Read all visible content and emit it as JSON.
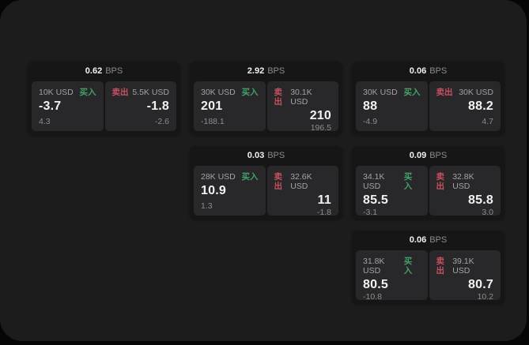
{
  "labels": {
    "bps_unit": "BPS",
    "buy": "买入",
    "sell": "卖出"
  },
  "colors": {
    "outer_bg": "#060607",
    "page_bg": "#1c1c1d",
    "card_bg": "#161617",
    "tile_bg": "#28282a",
    "value_text": "#f2f2f2",
    "muted_text": "#a3a3a3",
    "faint_text": "#8c8c8c",
    "buy_green": "#3fa368",
    "sell_red": "#c84f5f"
  },
  "cards": [
    {
      "bps": "0.62",
      "buy": {
        "notional": "10K USD",
        "price": "-3.7",
        "delta": "4.3"
      },
      "sell": {
        "notional": "5.5K USD",
        "price": "-1.8",
        "delta": "-2.6"
      }
    },
    {
      "bps": "2.92",
      "buy": {
        "notional": "30K USD",
        "price": "201",
        "delta": "-188.1"
      },
      "sell": {
        "notional": "30.1K USD",
        "price": "210",
        "delta": "196.5"
      }
    },
    {
      "bps": "0.06",
      "buy": {
        "notional": "30K USD",
        "price": "88",
        "delta": "-4.9"
      },
      "sell": {
        "notional": "30K USD",
        "price": "88.2",
        "delta": "4.7"
      }
    },
    {
      "bps": "0.03",
      "buy": {
        "notional": "28K USD",
        "price": "10.9",
        "delta": "1.3"
      },
      "sell": {
        "notional": "32.6K USD",
        "price": "11",
        "delta": "-1.8"
      }
    },
    {
      "bps": "0.09",
      "buy": {
        "notional": "34.1K USD",
        "price": "85.5",
        "delta": "-3.1"
      },
      "sell": {
        "notional": "32.8K USD",
        "price": "85.8",
        "delta": "3.0"
      }
    },
    {
      "bps": "0.06",
      "buy": {
        "notional": "31.8K USD",
        "price": "80.5",
        "delta": "-10.8"
      },
      "sell": {
        "notional": "39.1K USD",
        "price": "80.7",
        "delta": "10.2"
      }
    }
  ]
}
